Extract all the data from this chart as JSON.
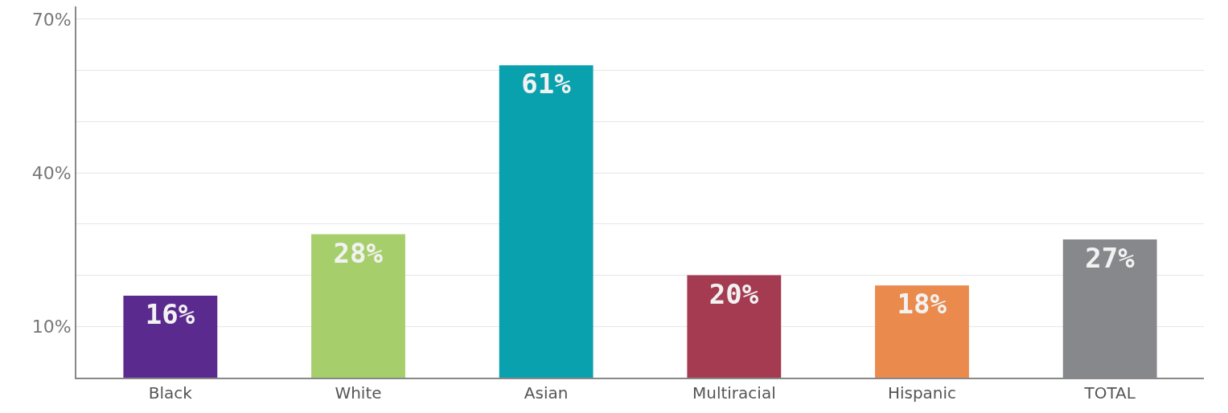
{
  "chart_data": {
    "type": "bar",
    "categories": [
      "Black",
      "White",
      "Asian",
      "Multiracial",
      "Hispanic",
      "TOTAL"
    ],
    "values": [
      16,
      28,
      61,
      20,
      18,
      27
    ],
    "colors": [
      "#5a2a8e",
      "#a6cf6c",
      "#0aa1ae",
      "#a43b51",
      "#ea8a4c",
      "#87888b"
    ],
    "value_labels": [
      "16%",
      "28%",
      "61%",
      "20%",
      "18%",
      "27%"
    ],
    "ylim": [
      0,
      72.5
    ],
    "yticks": [
      {
        "value": 0,
        "label": null
      },
      {
        "value": 10,
        "label": "10%"
      },
      {
        "value": 20,
        "label": null
      },
      {
        "value": 30,
        "label": null
      },
      {
        "value": 40,
        "label": "40%"
      },
      {
        "value": 50,
        "label": null
      },
      {
        "value": 60,
        "label": null
      },
      {
        "value": 70,
        "label": "70%"
      }
    ],
    "grid": "y"
  }
}
